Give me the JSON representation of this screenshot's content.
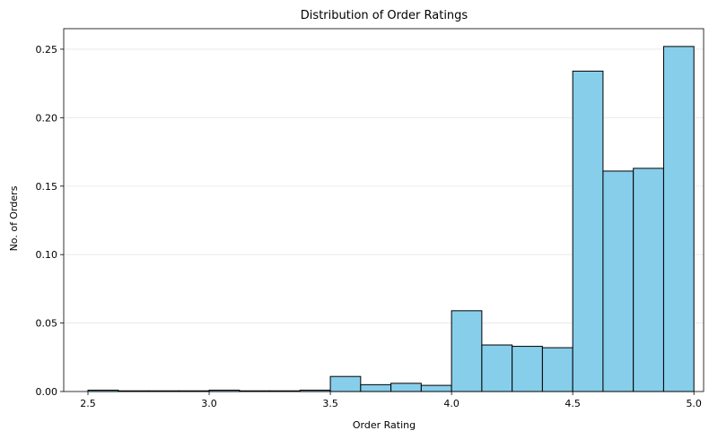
{
  "chart_data": {
    "type": "bar",
    "title": "Distribution of Order Ratings",
    "xlabel": "Order Rating",
    "ylabel": "No. of Orders",
    "bin_edges": [
      2.5,
      2.625,
      2.75,
      2.875,
      3.0,
      3.125,
      3.25,
      3.375,
      3.5,
      3.625,
      3.75,
      3.875,
      4.0,
      4.125,
      4.25,
      4.375,
      4.5,
      4.625,
      4.75,
      4.875,
      5.0
    ],
    "values": [
      0.001,
      0.0005,
      0.0005,
      0.0005,
      0.001,
      0.0005,
      0.0005,
      0.001,
      0.011,
      0.005,
      0.006,
      0.0045,
      0.059,
      0.034,
      0.033,
      0.032,
      0.234,
      0.161,
      0.163,
      0.252
    ],
    "xlim": [
      2.4,
      5.04
    ],
    "ylim": [
      0,
      0.265
    ],
    "xticks": [
      2.5,
      3.0,
      3.5,
      4.0,
      4.5,
      5.0
    ],
    "xtick_labels": [
      "2.5",
      "3.0",
      "3.5",
      "4.0",
      "4.5",
      "5.0"
    ],
    "yticks": [
      0,
      0.05,
      0.1,
      0.15,
      0.2,
      0.25
    ],
    "ytick_labels": [
      "0.00",
      "0.05",
      "0.10",
      "0.15",
      "0.20",
      "0.25"
    ],
    "grid": "y",
    "colors": {
      "bar_fill": "#87ceeb",
      "bar_edge": "#000000",
      "grid": "#e6e6e6"
    }
  }
}
